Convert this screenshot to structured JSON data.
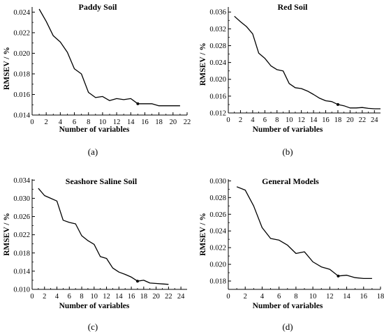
{
  "chart_data": [
    {
      "type": "line",
      "title": "Paddy Soil",
      "caption": "(a)",
      "xlabel": "Number of variables",
      "ylabel": "RMSEV / %",
      "xlim": [
        0,
        22
      ],
      "ylim": [
        0.014,
        0.0245
      ],
      "xticks": [
        "0",
        "2",
        "4",
        "6",
        "8",
        "10",
        "12",
        "14",
        "16",
        "18",
        "20",
        "22"
      ],
      "yticks": [
        "0.014",
        "0.016",
        "0.018",
        "0.020",
        "0.022",
        "0.024"
      ],
      "grid": false,
      "series": [
        {
          "x": [
            1,
            2,
            3,
            4,
            5,
            6,
            7,
            8,
            9,
            10,
            11,
            12,
            13,
            14,
            15,
            16,
            17,
            18,
            19,
            20,
            21
          ],
          "y": [
            0.0243,
            0.0231,
            0.0217,
            0.0211,
            0.0201,
            0.0185,
            0.018,
            0.0162,
            0.0157,
            0.0158,
            0.0154,
            0.0156,
            0.0155,
            0.0156,
            0.0151,
            0.0151,
            0.0151,
            0.0149,
            0.0149,
            0.0149,
            0.0149
          ]
        }
      ],
      "marker": {
        "x": 15,
        "y": 0.0151
      }
    },
    {
      "type": "line",
      "title": "Red Soil",
      "caption": "(b)",
      "xlabel": "Number of variables",
      "ylabel": "RMSEV / %",
      "xlim": [
        0,
        25
      ],
      "ylim": [
        0.012,
        0.0372
      ],
      "xticks": [
        "0",
        "2",
        "4",
        "6",
        "8",
        "10",
        "12",
        "14",
        "16",
        "18",
        "20",
        "22",
        "24"
      ],
      "yticks": [
        "0.012",
        "0.016",
        "0.020",
        "0.024",
        "0.028",
        "0.032",
        "0.036"
      ],
      "grid": false,
      "series": [
        {
          "x": [
            1,
            2,
            3,
            4,
            5,
            6,
            7,
            8,
            9,
            10,
            11,
            12,
            13,
            14,
            15,
            16,
            17,
            18,
            19,
            20,
            21,
            22,
            23,
            24,
            25
          ],
          "y": [
            0.035,
            0.0337,
            0.0325,
            0.0308,
            0.0262,
            0.025,
            0.0232,
            0.0223,
            0.022,
            0.019,
            0.018,
            0.0178,
            0.0172,
            0.0164,
            0.0155,
            0.0149,
            0.0147,
            0.014,
            0.0137,
            0.0132,
            0.0132,
            0.0133,
            0.0131,
            0.013,
            0.013
          ]
        }
      ],
      "marker": {
        "x": 18,
        "y": 0.014
      }
    },
    {
      "type": "line",
      "title": "Seashore Saline Soil",
      "caption": "(c)",
      "xlabel": "Number of variables",
      "ylabel": "RMSEV / %",
      "xlim": [
        0,
        25
      ],
      "ylim": [
        0.01,
        0.0342
      ],
      "xticks": [
        "0",
        "2",
        "4",
        "6",
        "8",
        "10",
        "12",
        "14",
        "16",
        "18",
        "20",
        "22",
        "24"
      ],
      "yticks": [
        "0.010",
        "0.014",
        "0.018",
        "0.022",
        "0.026",
        "0.030",
        "0.034"
      ],
      "grid": false,
      "series": [
        {
          "x": [
            1,
            2,
            3,
            4,
            5,
            6,
            7,
            8,
            9,
            10,
            11,
            12,
            13,
            14,
            15,
            16,
            17,
            18,
            19,
            20,
            21,
            22
          ],
          "y": [
            0.0322,
            0.0306,
            0.03,
            0.0294,
            0.0252,
            0.0247,
            0.0244,
            0.0218,
            0.0207,
            0.0199,
            0.0172,
            0.0168,
            0.0147,
            0.0138,
            0.0133,
            0.0127,
            0.0118,
            0.012,
            0.0114,
            0.0113,
            0.0112,
            0.0111
          ]
        }
      ],
      "marker": {
        "x": 17,
        "y": 0.0118
      }
    },
    {
      "type": "line",
      "title": "General Models",
      "caption": "(d)",
      "xlabel": "Number of variables",
      "ylabel": "RMSEV / %",
      "xlim": [
        0,
        18
      ],
      "ylim": [
        0.017,
        0.0302
      ],
      "xticks": [
        "0",
        "2",
        "4",
        "6",
        "8",
        "10",
        "12",
        "14",
        "16",
        "18"
      ],
      "yticks": [
        "0.018",
        "0.020",
        "0.022",
        "0.024",
        "0.026",
        "0.028",
        "0.030"
      ],
      "grid": false,
      "series": [
        {
          "x": [
            1,
            2,
            3,
            4,
            5,
            6,
            7,
            8,
            9,
            10,
            11,
            12,
            13,
            14,
            15,
            16,
            17
          ],
          "y": [
            0.0293,
            0.0289,
            0.027,
            0.0244,
            0.0231,
            0.0229,
            0.0223,
            0.0213,
            0.0215,
            0.0203,
            0.0197,
            0.0194,
            0.0186,
            0.0187,
            0.0184,
            0.0183,
            0.0183
          ]
        }
      ],
      "marker": {
        "x": 13,
        "y": 0.0186
      }
    }
  ]
}
